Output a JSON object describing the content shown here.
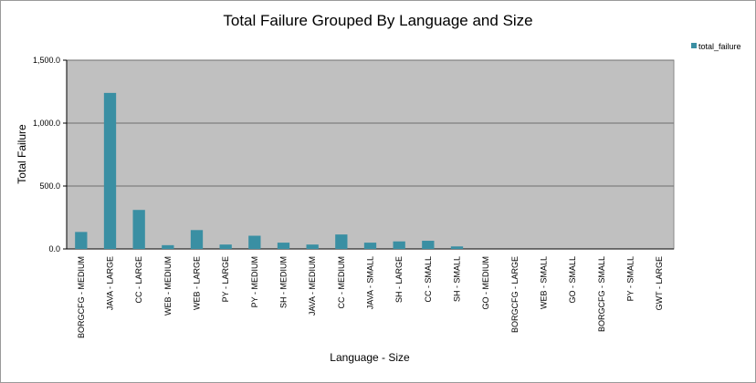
{
  "chart_data": {
    "type": "bar",
    "title": "Total Failure Grouped By Language and Size",
    "xlabel": "Language - Size",
    "ylabel": "Total Failure",
    "ylim": [
      0,
      1500
    ],
    "yticks": [
      0,
      500,
      1000,
      1500
    ],
    "ytick_labels": [
      "0.0",
      "500.0",
      "1,000.0",
      "1,500.0"
    ],
    "grid": true,
    "legend_position": "top-right",
    "categories": [
      "BORGCFG - MEDIUM",
      "JAVA - LARGE",
      "CC - LARGE",
      "WEB - MEDIUM",
      "WEB - LARGE",
      "PY - LARGE",
      "PY - MEDIUM",
      "SH - MEDIUM",
      "JAVA - MEDIUM",
      "CC - MEDIUM",
      "JAVA - SMALL",
      "SH - LARGE",
      "CC - SMALL",
      "SH - SMALL",
      "GO - MEDIUM",
      "BORGCFG - LARGE",
      "WEB - SMALL",
      "GO - SMALL",
      "BORGCFG - SMALL",
      "PY - SMALL",
      "GWT - LARGE"
    ],
    "series": [
      {
        "name": "total_failure",
        "color": "#3a8fa3",
        "values": [
          135,
          1240,
          310,
          30,
          150,
          35,
          105,
          50,
          35,
          115,
          50,
          60,
          65,
          20,
          0,
          0,
          0,
          0,
          0,
          0,
          0
        ]
      }
    ],
    "plot_background": "#c0c0c0",
    "grid_color": "#6e6e6e"
  }
}
